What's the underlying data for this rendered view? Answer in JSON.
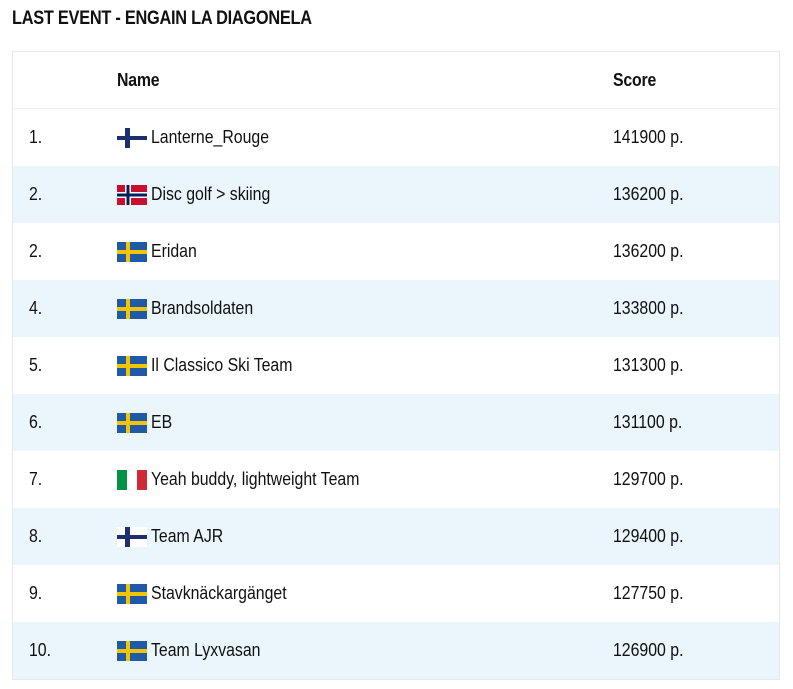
{
  "page": {
    "title": "LAST EVENT - ENGAIN LA DIAGONELA"
  },
  "table": {
    "headers": {
      "rank": "",
      "name": "Name",
      "score": "Score"
    },
    "rows": [
      {
        "rank": "1.",
        "flag": "finland-flag-icon",
        "name": "Lanterne_Rouge",
        "score": "141900 p."
      },
      {
        "rank": "2.",
        "flag": "norway-flag-icon",
        "name": "Disc golf > skiing",
        "score": "136200 p."
      },
      {
        "rank": "2.",
        "flag": "sweden-flag-icon",
        "name": "Eridan",
        "score": "136200 p."
      },
      {
        "rank": "4.",
        "flag": "sweden-flag-icon",
        "name": "Brandsoldaten",
        "score": "133800 p."
      },
      {
        "rank": "5.",
        "flag": "sweden-flag-icon",
        "name": "Il Classico Ski Team",
        "score": "131300 p."
      },
      {
        "rank": "6.",
        "flag": "sweden-flag-icon",
        "name": "EB",
        "score": "131100 p."
      },
      {
        "rank": "7.",
        "flag": "italy-flag-icon",
        "name": "Yeah buddy, lightweight Team",
        "score": "129700 p."
      },
      {
        "rank": "8.",
        "flag": "finland-flag-icon",
        "name": "Team AJR",
        "score": "129400 p."
      },
      {
        "rank": "9.",
        "flag": "sweden-flag-icon",
        "name": "Stavknäckargänget",
        "score": "127750 p."
      },
      {
        "rank": "10.",
        "flag": "sweden-flag-icon",
        "name": "Team Lyxvasan",
        "score": "126900 p."
      }
    ]
  },
  "colors": {
    "row_alt": "#eaf6fb",
    "sweden_blue": "#1f5aa6",
    "sweden_yellow": "#f5c400",
    "finland_blue": "#1d2f6e",
    "norway_red": "#c8102e",
    "norway_blue": "#00205b",
    "italy_green": "#009246",
    "italy_red": "#ce2b37"
  }
}
